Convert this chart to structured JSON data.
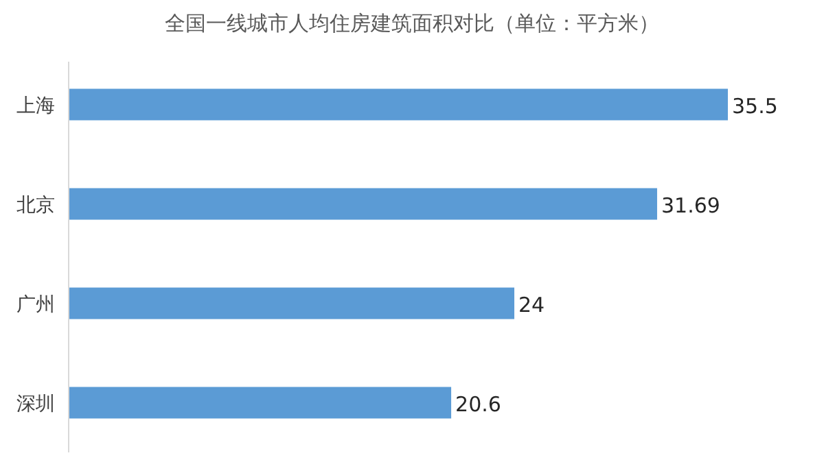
{
  "chart_data": {
    "type": "bar",
    "orientation": "horizontal",
    "title": "全国一线城市人均住房建筑面积对比（单位：平方米）",
    "categories": [
      "上海",
      "北京",
      "广州",
      "深圳"
    ],
    "values": [
      35.5,
      31.69,
      24,
      20.6
    ],
    "color": "#5b9bd5",
    "data_labels": true
  }
}
